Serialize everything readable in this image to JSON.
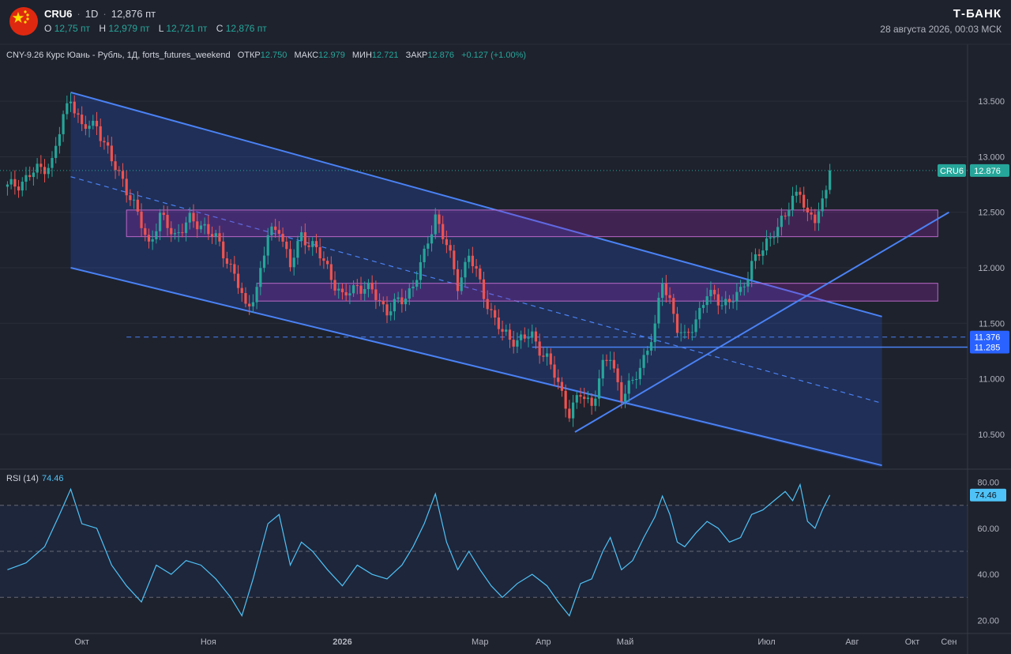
{
  "header": {
    "symbol": "CRU6",
    "interval": "1D",
    "price": "12,876 пт",
    "o_label": "O",
    "o_value": "12,75 пт",
    "h_label": "H",
    "h_value": "12,979 пт",
    "l_label": "L",
    "l_value": "12,721 пт",
    "c_label": "C",
    "c_value": "12,876 пт",
    "brand": "Т-БАНК",
    "datetime": "28 августа 2026, 00:03 МСК"
  },
  "legend": {
    "title": "CNY-9.26 Курс Юань - Рубль, 1Д, forts_futures_weekend",
    "open_label": "ОТКР",
    "open_value": "12.750",
    "high_label": "МАКС",
    "high_value": "12.979",
    "low_label": "МИН",
    "low_value": "12.721",
    "close_label": "ЗАКР",
    "close_value": "12.876",
    "change": "+0.127 (+1.00%)"
  },
  "rsi_legend": {
    "label": "RSI (14)",
    "value": "74.46"
  },
  "colors": {
    "background": "#1e222d",
    "up": "#26a69a",
    "down": "#ef5350",
    "channel": "#2962ff",
    "zone": "#9c27b0",
    "rsi": "#4fc3f7"
  },
  "chart_data": [
    {
      "type": "candlestick",
      "title": "CNY-9.26 Курс Юань - Рубль, 1Д",
      "ylim": [
        10.2,
        13.8
      ],
      "yticks": [
        "13.500",
        "13.000",
        "12.500",
        "12.000",
        "11.500",
        "11.000",
        "10.500"
      ],
      "xlabels": [
        "Окт",
        "Ноя",
        "2026",
        "Мар",
        "Апр",
        "Май",
        "Июл",
        "Авг",
        "Сен",
        "Окт"
      ],
      "last_price": {
        "label": "CRU6",
        "value": "12.876"
      },
      "levels": [
        {
          "value": "11.376",
          "style": "dashed"
        },
        {
          "value": "11.285",
          "style": "solid"
        }
      ],
      "zones": [
        [
          12.28,
          12.52
        ],
        [
          11.7,
          11.86
        ]
      ],
      "channel": {
        "upper": [
          13.58,
          11.56
        ],
        "lower": [
          12.0,
          10.22
        ],
        "mid": [
          12.82,
          10.78
        ]
      },
      "support_trendline": [
        10.52,
        12.5
      ],
      "price_path": [
        {
          "t": 0,
          "p": 12.72
        },
        {
          "t": 4,
          "p": 12.78
        },
        {
          "t": 8,
          "p": 12.88
        },
        {
          "t": 12,
          "p": 12.95
        },
        {
          "t": 15,
          "p": 13.35
        },
        {
          "t": 17,
          "p": 13.55
        },
        {
          "t": 20,
          "p": 13.25
        },
        {
          "t": 24,
          "p": 13.3
        },
        {
          "t": 28,
          "p": 12.95
        },
        {
          "t": 31,
          "p": 12.8
        },
        {
          "t": 34,
          "p": 12.55
        },
        {
          "t": 38,
          "p": 12.22
        },
        {
          "t": 41,
          "p": 12.45
        },
        {
          "t": 45,
          "p": 12.3
        },
        {
          "t": 49,
          "p": 12.42
        },
        {
          "t": 53,
          "p": 12.38
        },
        {
          "t": 57,
          "p": 12.2
        },
        {
          "t": 61,
          "p": 11.95
        },
        {
          "t": 64,
          "p": 11.62
        },
        {
          "t": 67,
          "p": 11.82
        },
        {
          "t": 70,
          "p": 12.28
        },
        {
          "t": 73,
          "p": 12.38
        },
        {
          "t": 76,
          "p": 12.0
        },
        {
          "t": 79,
          "p": 12.3
        },
        {
          "t": 82,
          "p": 12.2
        },
        {
          "t": 86,
          "p": 12.0
        },
        {
          "t": 90,
          "p": 11.72
        },
        {
          "t": 94,
          "p": 11.85
        },
        {
          "t": 98,
          "p": 11.78
        },
        {
          "t": 102,
          "p": 11.62
        },
        {
          "t": 106,
          "p": 11.7
        },
        {
          "t": 109,
          "p": 11.85
        },
        {
          "t": 112,
          "p": 12.1
        },
        {
          "t": 115,
          "p": 12.48
        },
        {
          "t": 118,
          "p": 12.2
        },
        {
          "t": 121,
          "p": 11.85
        },
        {
          "t": 124,
          "p": 12.12
        },
        {
          "t": 127,
          "p": 11.85
        },
        {
          "t": 130,
          "p": 11.6
        },
        {
          "t": 133,
          "p": 11.4
        },
        {
          "t": 137,
          "p": 11.35
        },
        {
          "t": 141,
          "p": 11.38
        },
        {
          "t": 145,
          "p": 11.18
        },
        {
          "t": 148,
          "p": 10.95
        },
        {
          "t": 151,
          "p": 10.7
        },
        {
          "t": 154,
          "p": 10.85
        },
        {
          "t": 157,
          "p": 10.78
        },
        {
          "t": 160,
          "p": 11.1
        },
        {
          "t": 162,
          "p": 11.2
        },
        {
          "t": 165,
          "p": 10.85
        },
        {
          "t": 168,
          "p": 10.95
        },
        {
          "t": 171,
          "p": 11.2
        },
        {
          "t": 174,
          "p": 11.45
        },
        {
          "t": 176,
          "p": 11.88
        },
        {
          "t": 178,
          "p": 11.72
        },
        {
          "t": 180,
          "p": 11.45
        },
        {
          "t": 182,
          "p": 11.35
        },
        {
          "t": 185,
          "p": 11.55
        },
        {
          "t": 188,
          "p": 11.75
        },
        {
          "t": 191,
          "p": 11.72
        },
        {
          "t": 194,
          "p": 11.68
        },
        {
          "t": 197,
          "p": 11.78
        },
        {
          "t": 200,
          "p": 12.05
        },
        {
          "t": 203,
          "p": 12.15
        },
        {
          "t": 206,
          "p": 12.35
        },
        {
          "t": 209,
          "p": 12.45
        },
        {
          "t": 211,
          "p": 12.62
        },
        {
          "t": 213,
          "p": 12.72
        },
        {
          "t": 215,
          "p": 12.45
        },
        {
          "t": 217,
          "p": 12.42
        },
        {
          "t": 219,
          "p": 12.6
        },
        {
          "t": 221,
          "p": 12.876
        }
      ]
    },
    {
      "type": "line",
      "title": "RSI (14)",
      "ylim": [
        15,
        85
      ],
      "yticks": [
        "80.00",
        "60.00",
        "40.00",
        "20.00"
      ],
      "bands": [
        70,
        50,
        30
      ],
      "last_value": "74.46",
      "series": [
        {
          "t": 0,
          "v": 42
        },
        {
          "t": 5,
          "v": 45
        },
        {
          "t": 10,
          "v": 52
        },
        {
          "t": 14,
          "v": 66
        },
        {
          "t": 17,
          "v": 77
        },
        {
          "t": 20,
          "v": 62
        },
        {
          "t": 24,
          "v": 60
        },
        {
          "t": 28,
          "v": 44
        },
        {
          "t": 32,
          "v": 35
        },
        {
          "t": 36,
          "v": 28
        },
        {
          "t": 40,
          "v": 44
        },
        {
          "t": 44,
          "v": 40
        },
        {
          "t": 48,
          "v": 46
        },
        {
          "t": 52,
          "v": 44
        },
        {
          "t": 56,
          "v": 38
        },
        {
          "t": 60,
          "v": 30
        },
        {
          "t": 63,
          "v": 22
        },
        {
          "t": 66,
          "v": 38
        },
        {
          "t": 70,
          "v": 62
        },
        {
          "t": 73,
          "v": 66
        },
        {
          "t": 76,
          "v": 44
        },
        {
          "t": 79,
          "v": 54
        },
        {
          "t": 82,
          "v": 50
        },
        {
          "t": 86,
          "v": 42
        },
        {
          "t": 90,
          "v": 35
        },
        {
          "t": 94,
          "v": 44
        },
        {
          "t": 98,
          "v": 40
        },
        {
          "t": 102,
          "v": 38
        },
        {
          "t": 106,
          "v": 44
        },
        {
          "t": 109,
          "v": 52
        },
        {
          "t": 112,
          "v": 62
        },
        {
          "t": 115,
          "v": 75
        },
        {
          "t": 118,
          "v": 54
        },
        {
          "t": 121,
          "v": 42
        },
        {
          "t": 124,
          "v": 50
        },
        {
          "t": 127,
          "v": 42
        },
        {
          "t": 130,
          "v": 35
        },
        {
          "t": 133,
          "v": 30
        },
        {
          "t": 137,
          "v": 36
        },
        {
          "t": 141,
          "v": 40
        },
        {
          "t": 145,
          "v": 35
        },
        {
          "t": 148,
          "v": 28
        },
        {
          "t": 151,
          "v": 22
        },
        {
          "t": 154,
          "v": 36
        },
        {
          "t": 157,
          "v": 38
        },
        {
          "t": 160,
          "v": 50
        },
        {
          "t": 162,
          "v": 56
        },
        {
          "t": 165,
          "v": 42
        },
        {
          "t": 168,
          "v": 46
        },
        {
          "t": 171,
          "v": 56
        },
        {
          "t": 174,
          "v": 65
        },
        {
          "t": 176,
          "v": 74
        },
        {
          "t": 178,
          "v": 66
        },
        {
          "t": 180,
          "v": 54
        },
        {
          "t": 182,
          "v": 52
        },
        {
          "t": 185,
          "v": 58
        },
        {
          "t": 188,
          "v": 63
        },
        {
          "t": 191,
          "v": 60
        },
        {
          "t": 194,
          "v": 54
        },
        {
          "t": 197,
          "v": 56
        },
        {
          "t": 200,
          "v": 66
        },
        {
          "t": 203,
          "v": 68
        },
        {
          "t": 206,
          "v": 72
        },
        {
          "t": 209,
          "v": 76
        },
        {
          "t": 211,
          "v": 72
        },
        {
          "t": 213,
          "v": 79
        },
        {
          "t": 215,
          "v": 63
        },
        {
          "t": 217,
          "v": 60
        },
        {
          "t": 219,
          "v": 68
        },
        {
          "t": 221,
          "v": 74.46
        }
      ]
    }
  ]
}
